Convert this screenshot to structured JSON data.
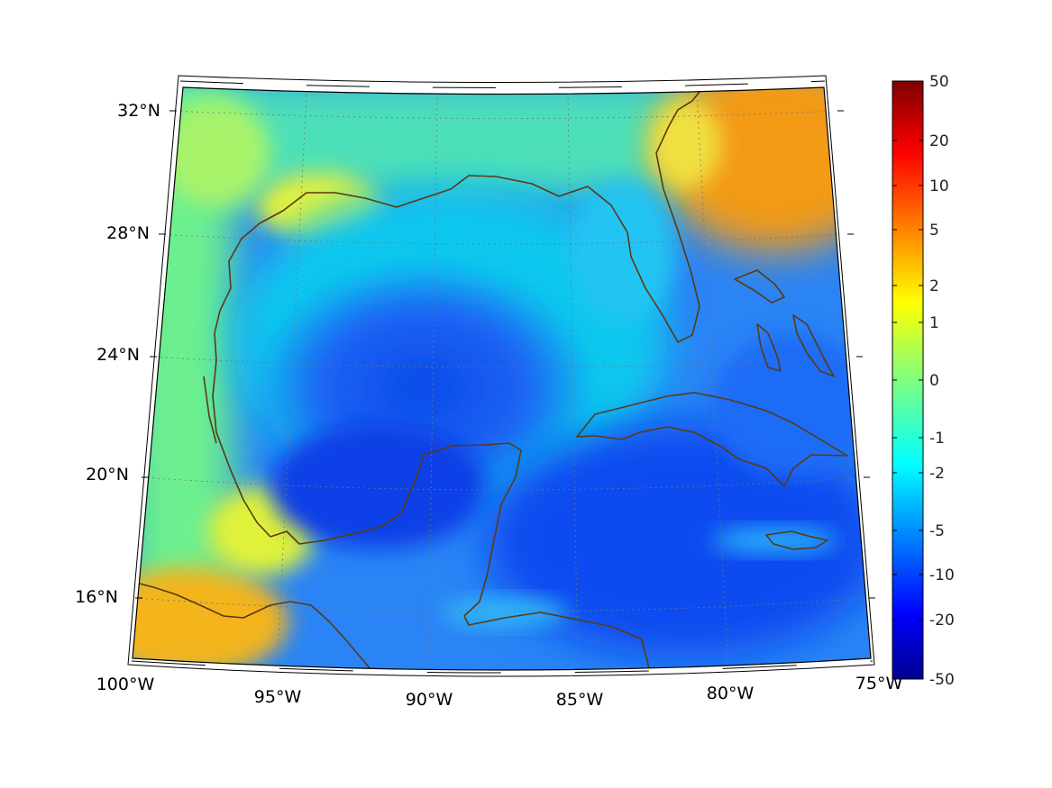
{
  "map": {
    "lat_labels": [
      "32°N",
      "28°N",
      "24°N",
      "20°N",
      "16°N"
    ],
    "lon_labels": [
      "100°W",
      "95°W",
      "90°W",
      "85°W",
      "80°W",
      "75°W"
    ],
    "region": "Gulf of Mexico and Caribbean",
    "extent": {
      "lon_min": -100,
      "lon_max": -75,
      "lat_min": 14.5,
      "lat_max": 32.5
    },
    "coastline_color": "#5a3a12"
  },
  "colorbar": {
    "ticks": [
      "50",
      "20",
      "10",
      "5",
      "2",
      "1",
      "0",
      "-1",
      "-2",
      "-5",
      "-10",
      "-20",
      "-50"
    ],
    "colormap": "jet",
    "top_color": "#800000",
    "bottom_color": "#00008f"
  }
}
